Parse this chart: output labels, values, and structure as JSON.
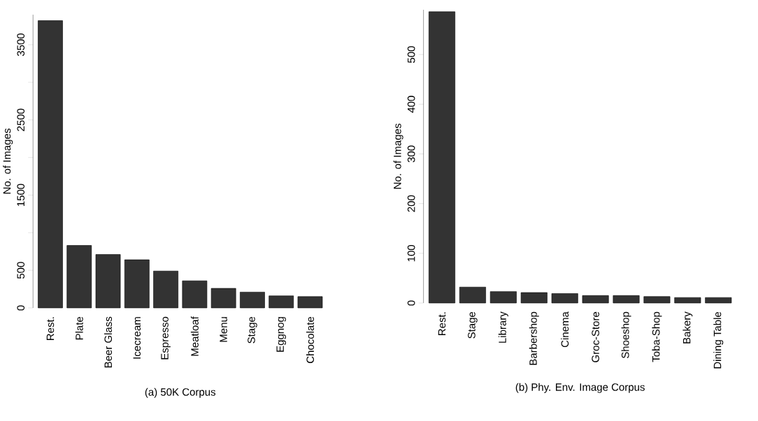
{
  "chart_data": [
    {
      "type": "bar",
      "xlabel": "(a) 50K Corpus",
      "ylabel": "No. of Images",
      "categories": [
        "Rest.",
        "Plate",
        "Beer Glass",
        "Icecream",
        "Espresso",
        "Meatloaf",
        "Menu",
        "Stage",
        "Eggnog",
        "Chocolate"
      ],
      "values": [
        3820,
        830,
        710,
        640,
        490,
        360,
        260,
        210,
        160,
        150
      ],
      "color": "#333333",
      "ylim": [
        0,
        3900
      ],
      "yticks": [
        0,
        500,
        {
          "value": 1000,
          "label": null
        },
        1500,
        {
          "value": 2000,
          "label": null
        },
        2500,
        {
          "value": 3000,
          "label": null
        },
        3500
      ]
    },
    {
      "type": "bar",
      "xlabel": "(b) Phy. Env. Image Corpus",
      "ylabel": "No. of Images",
      "categories": [
        "Rest.",
        "Stage",
        "Library",
        "Barbershop",
        "Cinema",
        "Groc-Store",
        "Shoeshop",
        "Toba-Shop",
        "Bakery",
        "Dining Table"
      ],
      "values": [
        586,
        32,
        23,
        21,
        19,
        15,
        15,
        13,
        11,
        11
      ],
      "color": "#333333",
      "ylim": [
        0,
        590
      ],
      "yticks": [
        0,
        100,
        200,
        300,
        400,
        500
      ]
    }
  ]
}
